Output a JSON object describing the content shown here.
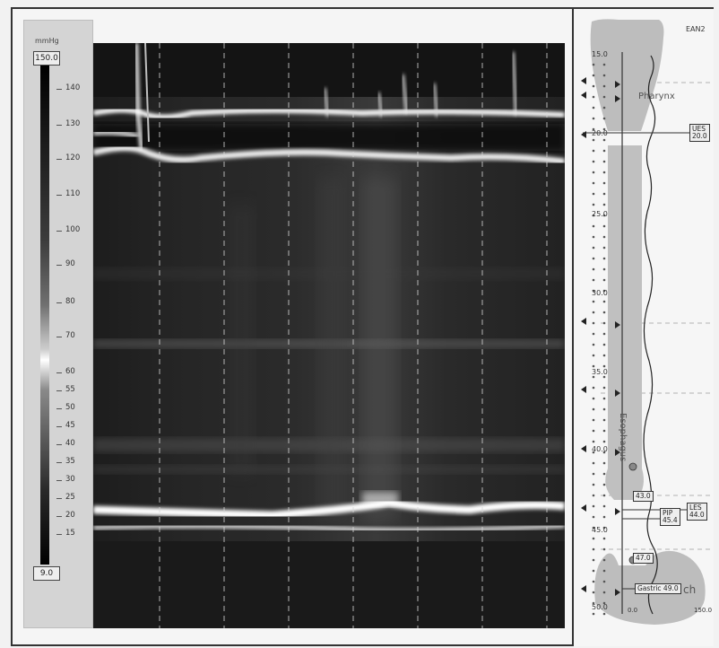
{
  "scale": {
    "unit": "mmHg",
    "max": "150.0",
    "min": "9.0",
    "ticks": [
      "140",
      "130",
      "120",
      "110",
      "100",
      "90",
      "80",
      "70",
      "60",
      "55",
      "50",
      "45",
      "40",
      "35",
      "30",
      "25",
      "20",
      "15"
    ]
  },
  "right_panel": {
    "top_label": "EAN2",
    "anatomy": {
      "pharynx": "Pharynx",
      "esophagus": "Esophagus",
      "stomach_fragment": "ch"
    },
    "depths": [
      "15.0",
      "20.0",
      "25.0",
      "30.0",
      "35.0",
      "40.0",
      "45.0",
      "50.0"
    ],
    "markers": {
      "ues": {
        "title": "UES",
        "value": "20.0"
      },
      "les": {
        "title": "LES",
        "value": "44.0"
      },
      "m43": "43.0",
      "pip": {
        "title": "PIP",
        "value": "45.4"
      },
      "m47": "47.0",
      "gastric": "Gastric 49.0"
    },
    "axis": {
      "left": "0.0",
      "right": "150.0"
    }
  },
  "colors": {
    "background": "#f2f2f2",
    "panel_gray": "#d4d4d4",
    "heatmap_dark": "#1e1e1e",
    "band_white": "#ffffff"
  }
}
